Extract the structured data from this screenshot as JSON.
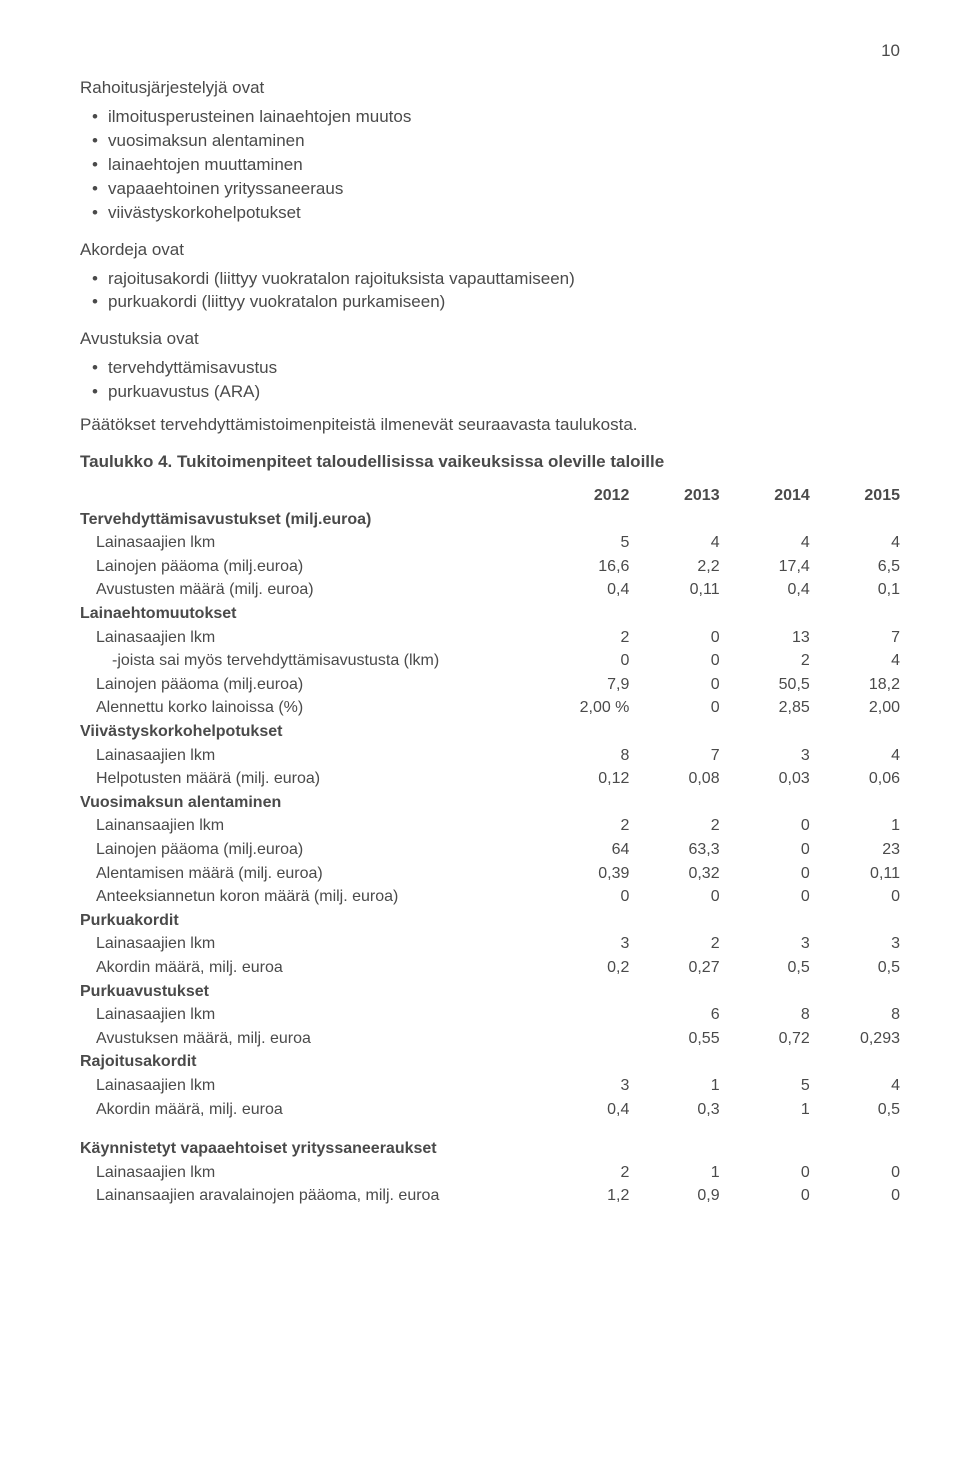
{
  "page_number": "10",
  "intro_heading": "Rahoitusjärjestelyjä ovat",
  "intro_bullets": [
    "ilmoitusperusteinen lainaehtojen muutos",
    "vuosimaksun alentaminen",
    "lainaehtojen muuttaminen",
    "vapaaehtoinen yrityssaneeraus",
    "viivästyskorkohelpotukset"
  ],
  "akordeja_heading": "Akordeja ovat",
  "akordeja_bullets": [
    "rajoitusakordi (liittyy vuokratalon rajoituksista vapauttamiseen)",
    "purkuakordi (liittyy vuokratalon purkamiseen)"
  ],
  "avustuksia_heading": "Avustuksia ovat",
  "avustuksia_bullets": [
    "tervehdyttämisavustus",
    "purkuavustus (ARA)"
  ],
  "para_text": "Päätökset tervehdyttämistoimenpiteistä ilmenevät seuraavasta taulukosta.",
  "table_title": "Taulukko 4. Tukitoimenpiteet taloudellisissa vaikeuksissa oleville taloille",
  "years": [
    "2012",
    "2013",
    "2014",
    "2015"
  ],
  "groups": [
    {
      "label": "Tervehdyttämisavustukset (milj.euroa)",
      "rows": [
        {
          "label": "Lainasaajien lkm",
          "v": [
            "5",
            "4",
            "4",
            "4"
          ]
        },
        {
          "label": "Lainojen pääoma (milj.euroa)",
          "v": [
            "16,6",
            "2,2",
            "17,4",
            "6,5"
          ]
        },
        {
          "label": "Avustusten määrä (milj. euroa)",
          "v": [
            "0,4",
            "0,11",
            "0,4",
            "0,1"
          ]
        }
      ]
    },
    {
      "label": "Lainaehtomuutokset",
      "rows": [
        {
          "label": "Lainasaajien lkm",
          "v": [
            "2",
            "0",
            "13",
            "7"
          ]
        },
        {
          "label": "-joista sai myös tervehdyttämisavustusta (lkm)",
          "indent": true,
          "v": [
            "0",
            "0",
            "2",
            "4"
          ]
        },
        {
          "label": "Lainojen pääoma (milj.euroa)",
          "v": [
            "7,9",
            "0",
            "50,5",
            "18,2"
          ]
        },
        {
          "label": "Alennettu korko lainoissa (%)",
          "v": [
            "2,00 %",
            "0",
            "2,85",
            "2,00"
          ]
        }
      ]
    },
    {
      "label": "Viivästyskorkohelpotukset",
      "rows": [
        {
          "label": "Lainasaajien lkm",
          "v": [
            "8",
            "7",
            "3",
            "4"
          ]
        },
        {
          "label": "Helpotusten määrä (milj. euroa)",
          "v": [
            "0,12",
            "0,08",
            "0,03",
            "0,06"
          ]
        }
      ]
    },
    {
      "label": "Vuosimaksun alentaminen",
      "rows": [
        {
          "label": "Lainansaajien lkm",
          "v": [
            "2",
            "2",
            "0",
            "1"
          ]
        },
        {
          "label": "Lainojen pääoma (milj.euroa)",
          "v": [
            "64",
            "63,3",
            "0",
            "23"
          ]
        },
        {
          "label": "Alentamisen määrä (milj. euroa)",
          "v": [
            "0,39",
            "0,32",
            "0",
            "0,11"
          ]
        },
        {
          "label": "Anteeksiannetun koron määrä (milj. euroa)",
          "v": [
            "0",
            "0",
            "0",
            "0"
          ]
        }
      ]
    },
    {
      "label": "Purkuakordit",
      "rows": [
        {
          "label": "Lainasaajien lkm",
          "v": [
            "3",
            "2",
            "3",
            "3"
          ]
        },
        {
          "label": "Akordin määrä, milj. euroa",
          "v": [
            "0,2",
            "0,27",
            "0,5",
            "0,5"
          ]
        }
      ]
    },
    {
      "label": "Purkuavustukset",
      "rows": [
        {
          "label": "Lainasaajien lkm",
          "v": [
            "",
            "6",
            "8",
            "8"
          ]
        },
        {
          "label": "Avustuksen määrä, milj. euroa",
          "v": [
            "",
            "0,55",
            "0,72",
            "0,293"
          ]
        }
      ]
    },
    {
      "label": "Rajoitusakordit",
      "rows": [
        {
          "label": "Lainasaajien lkm",
          "v": [
            "3",
            "1",
            "5",
            "4"
          ]
        },
        {
          "label": "Akordin määrä, milj. euroa",
          "v": [
            "0,4",
            "0,3",
            "1",
            "0,5"
          ]
        }
      ]
    }
  ],
  "footer_group": {
    "label": "Käynnistetyt vapaaehtoiset yrityssaneeraukset",
    "rows": [
      {
        "label": "Lainasaajien lkm",
        "v": [
          "2",
          "1",
          "0",
          "0"
        ]
      },
      {
        "label": "Lainansaajien aravalainojen pääoma, milj. euroa",
        "v": [
          "1,2",
          "0,9",
          "0",
          "0"
        ]
      }
    ]
  }
}
